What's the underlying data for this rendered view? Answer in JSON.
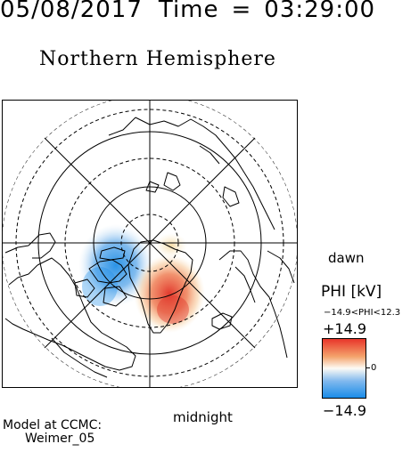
{
  "header": {
    "date": "05/08/2017",
    "time_label": "Time",
    "equals": "=",
    "time": "03:29:00"
  },
  "title": "Northern Hemisphere",
  "map": {
    "dawn_label": "dawn",
    "midnight_label": "midnight"
  },
  "colorbar": {
    "title": "PHI [kV]",
    "range_text": "−14.9<PHI<12.3",
    "max_label": "+14.9",
    "min_label": "−14.9",
    "zero_label": "0",
    "colors": {
      "top": "#e8352a",
      "upper": "#f4a36c",
      "middle": "#fdfbf5",
      "lower": "#7fb8ee",
      "bottom": "#1a8ce8"
    }
  },
  "model": {
    "line1": "Model at CCMC:",
    "line2": "Weimer_05"
  }
}
